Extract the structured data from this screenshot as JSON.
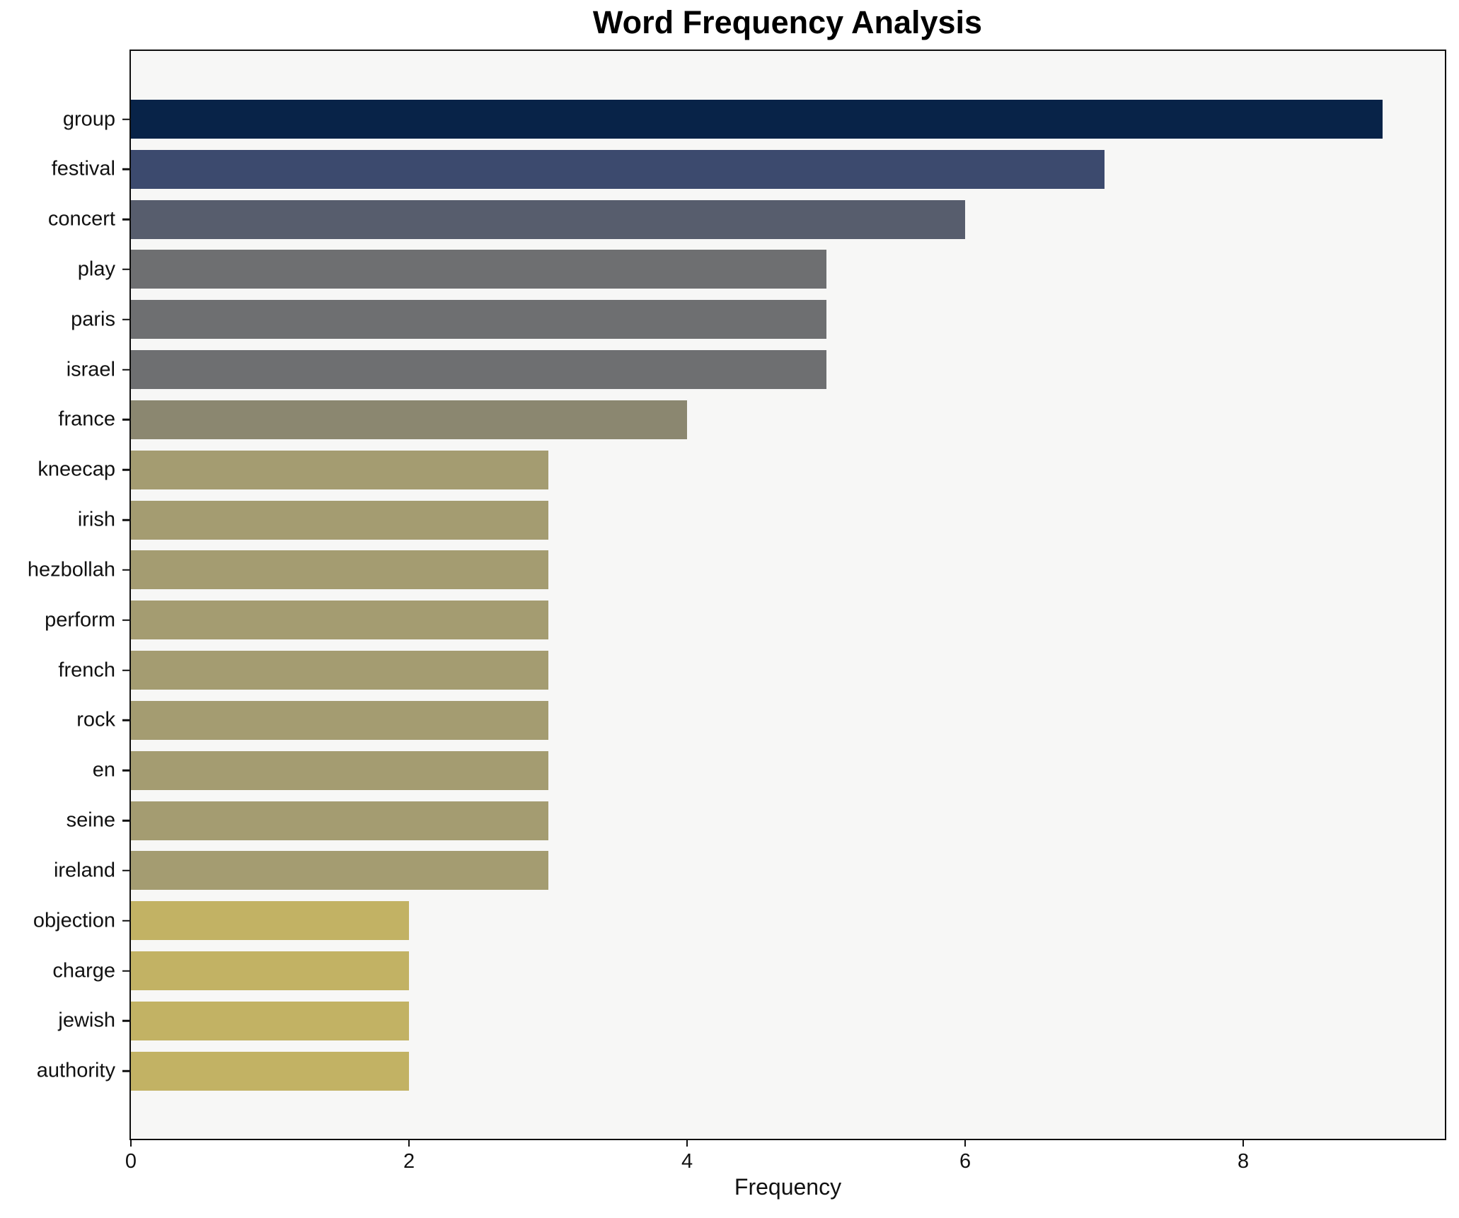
{
  "chart_data": {
    "type": "bar",
    "orientation": "horizontal",
    "title": "Word Frequency Analysis",
    "xlabel": "Frequency",
    "ylabel": "",
    "categories": [
      "group",
      "festival",
      "concert",
      "play",
      "paris",
      "israel",
      "france",
      "kneecap",
      "irish",
      "hezbollah",
      "perform",
      "french",
      "rock",
      "en",
      "seine",
      "ireland",
      "objection",
      "charge",
      "jewish",
      "authority"
    ],
    "values": [
      9,
      7,
      6,
      5,
      5,
      5,
      4,
      3,
      3,
      3,
      3,
      3,
      3,
      3,
      3,
      3,
      2,
      2,
      2,
      2
    ],
    "bar_colors": [
      "#082348",
      "#3c4a6e",
      "#575d6d",
      "#6e6f71",
      "#6e6f71",
      "#6e6f71",
      "#8b8770",
      "#a49c71",
      "#a49c71",
      "#a49c71",
      "#a49c71",
      "#a49c71",
      "#a49c71",
      "#a49c71",
      "#a49c71",
      "#a49c71",
      "#c2b264",
      "#c2b264",
      "#c2b264",
      "#c2b264"
    ],
    "xlim": [
      0,
      9.45
    ],
    "xticks": [
      0,
      2,
      4,
      6,
      8
    ],
    "xtick_labels": [
      "0",
      "2",
      "4",
      "6",
      "8"
    ],
    "grid": false,
    "legend_position": "none"
  },
  "styles": {
    "figure_bg": "#ffffff",
    "plot_bg": "#f7f7f6",
    "spine_color": "#0f0f0f",
    "text_color": "#111111"
  }
}
